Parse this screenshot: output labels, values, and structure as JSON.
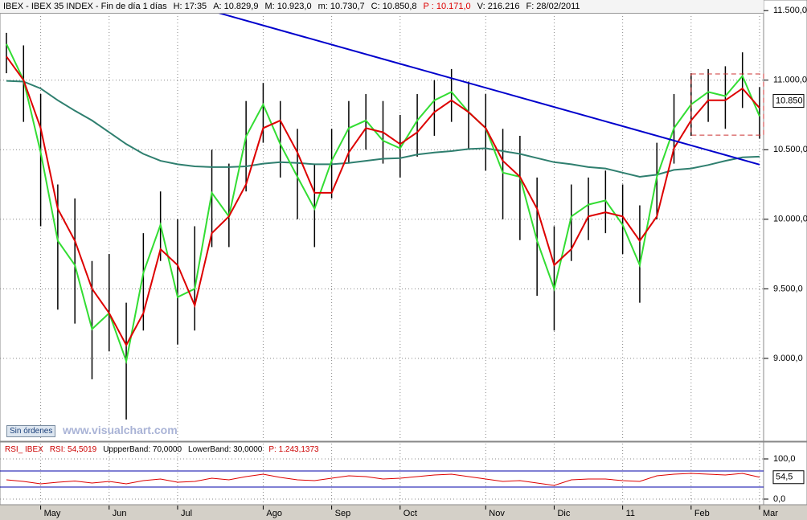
{
  "header": {
    "items": [
      "IBEX - IBEX 35 INDEX - Fin de día 1 días",
      "H: 17:35",
      "A: 10.829,9",
      "M: 10.923,0",
      "m: 10.730,7",
      "C: 10.850,8",
      "P : 10.171,0",
      "V: 216.216",
      "F: 28/02/2011"
    ],
    "highlight_item": 6
  },
  "watermark": "www.visualchart.com",
  "button": "Sin órdenes",
  "chart_data": [
    {
      "type": "line",
      "categories": [
        null,
        null,
        "May",
        null,
        null,
        null,
        "Jun",
        null,
        null,
        null,
        "Jul",
        null,
        null,
        null,
        null,
        "Ago",
        null,
        null,
        null,
        "Sep",
        null,
        null,
        null,
        "Oct",
        null,
        null,
        null,
        null,
        "Nov",
        null,
        null,
        null,
        "Dic",
        null,
        null,
        null,
        "11",
        null,
        null,
        null,
        "Feb",
        null,
        null,
        null,
        "Mar"
      ],
      "high": [
        11340,
        11250,
        10900,
        10250,
        10150,
        9700,
        9750,
        9400,
        9900,
        10200,
        10000,
        9950,
        10500,
        10400,
        10850,
        10980,
        10850,
        10650,
        10400,
        10650,
        10850,
        10900,
        10850,
        10750,
        10900,
        11000,
        11080,
        10990,
        10900,
        10650,
        10600,
        10300,
        9950,
        10250,
        10300,
        10350,
        10250,
        10100,
        10550,
        10900,
        11050,
        11080,
        11100,
        11200,
        10950
      ],
      "low": [
        11050,
        10700,
        9950,
        9350,
        9250,
        8850,
        9050,
        8560,
        9200,
        9700,
        9100,
        9200,
        9800,
        9800,
        10200,
        10550,
        10300,
        10000,
        9800,
        10150,
        10400,
        10500,
        10400,
        10300,
        10450,
        10600,
        10700,
        10500,
        10350,
        10000,
        9850,
        9450,
        9200,
        9700,
        9850,
        9900,
        9750,
        9400,
        10000,
        10400,
        10600,
        10700,
        10650,
        10800,
        10580
      ],
      "bar_color": "#000000",
      "series": [
        {
          "color": "#2f7f6f",
          "values": [
            10995,
            10990,
            10940,
            10855,
            10780,
            10710,
            10625,
            10540,
            10470,
            10420,
            10395,
            10380,
            10375,
            10375,
            10380,
            10400,
            10410,
            10405,
            10395,
            10395,
            10405,
            10420,
            10435,
            10440,
            10465,
            10480,
            10490,
            10505,
            10510,
            10490,
            10470,
            10440,
            10410,
            10395,
            10375,
            10365,
            10335,
            10305,
            10320,
            10355,
            10365,
            10390,
            10420,
            10445,
            10450
          ]
        },
        {
          "color": "#33dd33",
          "values": [
            11260,
            11000,
            10480,
            9845,
            9670,
            9210,
            9325,
            8980,
            9615,
            9960,
            9440,
            9500,
            10190,
            10020,
            10595,
            10825,
            10540,
            10305,
            10075,
            10420,
            10655,
            10710,
            10565,
            10510,
            10710,
            10855,
            10915,
            10770,
            10655,
            10335,
            10305,
            9845,
            9500,
            10020,
            10105,
            10135,
            9960,
            9670,
            10305,
            10655,
            10825,
            10915,
            10885,
            11030,
            10740
          ]
        },
        {
          "color": "#dd0000",
          "values": [
            11170,
            11000,
            10655,
            10075,
            9845,
            9500,
            9325,
            9095,
            9325,
            9785,
            9670,
            9380,
            9900,
            10020,
            10250,
            10655,
            10710,
            10480,
            10190,
            10190,
            10480,
            10655,
            10625,
            10540,
            10625,
            10770,
            10855,
            10770,
            10655,
            10420,
            10305,
            10075,
            9670,
            9785,
            10020,
            10050,
            10020,
            9845,
            10020,
            10510,
            10710,
            10855,
            10855,
            10940,
            10800
          ]
        }
      ],
      "trend_line": {
        "color": "#0000cc",
        "x": [
          12,
          44
        ],
        "values": [
          11497,
          10393
        ]
      },
      "range_box": {
        "color": "#cc3333",
        "x": [
          40,
          44
        ],
        "values": [
          11045,
          10605
        ]
      },
      "last_price": {
        "value": 10850.8,
        "label": "10.850"
      },
      "ylim": [
        8410,
        11530
      ],
      "yticks": [
        {
          "value": 11500,
          "label": "11.500,0"
        },
        {
          "value": 11000,
          "label": "11.000,0"
        },
        {
          "value": 10500,
          "label": "10.500,0"
        },
        {
          "value": 10000,
          "label": "10.000,0"
        },
        {
          "value": 9500,
          "label": "9.500,0"
        },
        {
          "value": 9000,
          "label": "9.000,0"
        }
      ],
      "grid": true
    },
    {
      "type": "line",
      "title_items": [
        "RSI_ IBEX",
        "RSI: 54,5019",
        "UppperBand: 70,0000",
        "LowerBand: 30,0000",
        "P: 1.243,1373"
      ],
      "series": [
        {
          "color": "#dd0000",
          "values": [
            48,
            44,
            38,
            42,
            45,
            40,
            44,
            38,
            46,
            50,
            42,
            44,
            52,
            48,
            56,
            62,
            54,
            48,
            46,
            52,
            58,
            56,
            50,
            52,
            56,
            60,
            62,
            56,
            50,
            44,
            46,
            40,
            34,
            48,
            50,
            50,
            46,
            44,
            58,
            62,
            64,
            62,
            60,
            64,
            54.5
          ]
        }
      ],
      "bands": [
        70,
        30
      ],
      "band_color": "#0000aa",
      "last_value": {
        "value": 54.5,
        "label": "54,5"
      },
      "ylim": [
        -14,
        138
      ],
      "yticks": [
        {
          "value": 100,
          "label": "100,0"
        },
        {
          "value": 0,
          "label": "0,0"
        }
      ],
      "grid": true
    }
  ]
}
